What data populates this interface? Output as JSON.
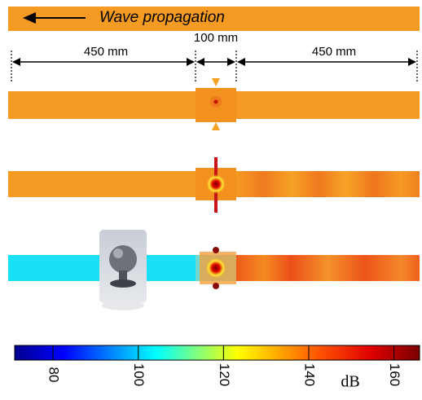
{
  "banner": {
    "label": "Wave propagation"
  },
  "dimensions": {
    "left": "450 mm",
    "middle": "100 mm",
    "right": "450 mm"
  },
  "colorbar": {
    "lim": [
      71,
      166
    ],
    "ticks": [
      80,
      100,
      120,
      140,
      160
    ],
    "unit": "dB"
  }
}
